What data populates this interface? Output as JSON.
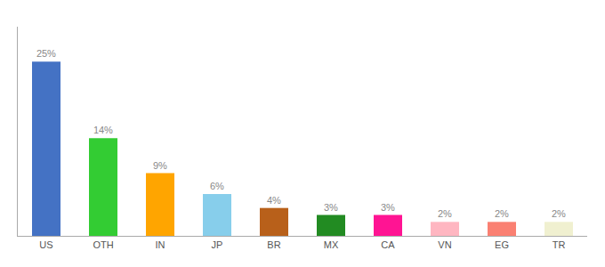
{
  "chart_data": {
    "type": "bar",
    "categories": [
      "US",
      "OTH",
      "IN",
      "JP",
      "BR",
      "MX",
      "CA",
      "VN",
      "EG",
      "TR"
    ],
    "values": [
      25,
      14,
      9,
      6,
      4,
      3,
      3,
      2,
      2,
      2
    ],
    "value_labels": [
      "25%",
      "14%",
      "9%",
      "6%",
      "4%",
      "3%",
      "3%",
      "2%",
      "2%",
      "2%"
    ],
    "colors": [
      "#4472C4",
      "#33CC33",
      "#FFA500",
      "#87CEEB",
      "#B8601A",
      "#228B22",
      "#FF1493",
      "#FFB6C1",
      "#FA8072",
      "#F0F0D0"
    ],
    "ylim": [
      0,
      30
    ],
    "data_labels": true,
    "tick_labels": "x",
    "grid": false
  }
}
